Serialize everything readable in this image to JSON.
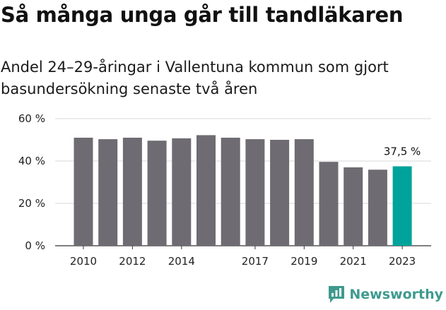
{
  "title": "Så många unga går till tandläkaren",
  "subtitle": "Andel 24–29-åringar i Vallentuna kommun som gjort basundersökning senaste två åren",
  "colors": {
    "bar": "#6e6c72",
    "highlight": "#00a39b",
    "grid": "#d9d9d9",
    "axis": "#333333"
  },
  "brand": {
    "name": "Newsworthy",
    "icon": "bar-chart-speech-bubble-icon",
    "color": "#3f9a8e"
  },
  "chart_data": {
    "type": "bar",
    "categories": [
      "2010",
      "2011",
      "2012",
      "2013",
      "2014",
      "2015",
      "2016",
      "2017",
      "2018",
      "2019",
      "2020",
      "2021",
      "2022",
      "2023"
    ],
    "values": [
      51,
      50.3,
      51,
      49.6,
      50.7,
      52.2,
      51,
      50.3,
      50,
      50.3,
      39.6,
      37,
      35.9,
      37.5
    ],
    "highlight_index": 13,
    "x_tick_labels": [
      "2010",
      "2012",
      "2014",
      "2017",
      "2019",
      "2021",
      "2023"
    ],
    "y_ticks": [
      0,
      20,
      40,
      60
    ],
    "y_tick_labels": [
      "0 %",
      "20 %",
      "40 %",
      "60 %"
    ],
    "ylim": [
      0,
      60
    ],
    "grid": true,
    "annotations": [
      {
        "category": "2023",
        "text": "37,5 %"
      }
    ]
  }
}
